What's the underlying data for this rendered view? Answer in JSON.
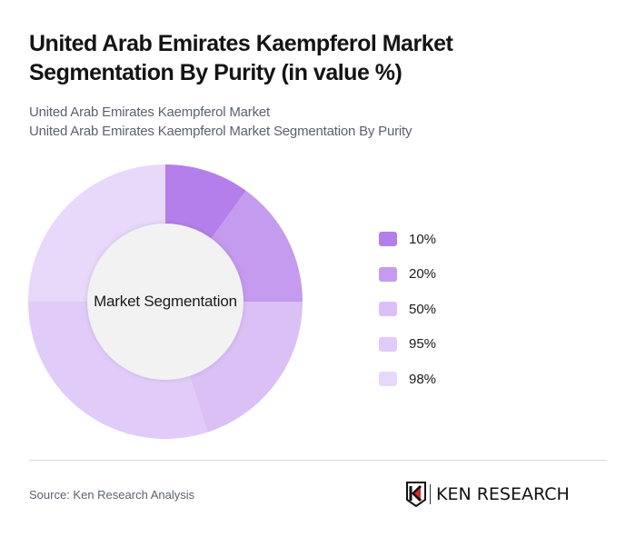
{
  "header": {
    "title": "United Arab Emirates Kaempferol Market Segmentation By Purity (in value %)",
    "subtitle_line1": "United Arab Emirates Kaempferol Market",
    "subtitle_line2": "United Arab Emirates Kaempferol Market Segmentation By Purity"
  },
  "chart": {
    "center_label": "Market Segmentation"
  },
  "legend": {
    "items": [
      {
        "label": "10%",
        "color": "#b47fea"
      },
      {
        "label": "20%",
        "color": "#c49bee"
      },
      {
        "label": "50%",
        "color": "#dbc0f6"
      },
      {
        "label": "95%",
        "color": "#e1cbf8"
      },
      {
        "label": "98%",
        "color": "#e8d8fa"
      }
    ]
  },
  "footer": {
    "source": "Source: Ken Research Analysis",
    "logo_text": "KEN RESEARCH"
  },
  "chart_data": {
    "type": "pie",
    "variant": "donut",
    "title": "United Arab Emirates Kaempferol Market Segmentation By Purity (in value %)",
    "center_label": "Market Segmentation",
    "categories": [
      "10%",
      "20%",
      "50%",
      "95%",
      "98%"
    ],
    "values": [
      10,
      15,
      20,
      30,
      25
    ],
    "colors": [
      "#b47fea",
      "#c49bee",
      "#dbc0f6",
      "#e1cbf8",
      "#e8d8fa"
    ],
    "start_angle": 0,
    "direction": "clockwise",
    "legend_position": "right"
  }
}
